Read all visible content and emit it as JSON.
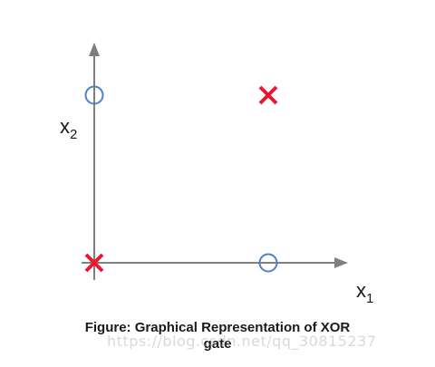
{
  "chart_data": {
    "type": "scatter",
    "title": "",
    "xlabel": {
      "base": "x",
      "sub": "1"
    },
    "ylabel": {
      "base": "x",
      "sub": "2"
    },
    "xlim": [
      0,
      1
    ],
    "ylim": [
      0,
      1
    ],
    "grid": false,
    "legend": "none",
    "series": [
      {
        "marker": "circle",
        "color": "#4f81bd",
        "points": [
          {
            "x": 0,
            "y": 1
          },
          {
            "x": 1,
            "y": 0
          }
        ]
      },
      {
        "marker": "cross",
        "color": "#e8192c",
        "points": [
          {
            "x": 0,
            "y": 0
          },
          {
            "x": 1,
            "y": 1
          }
        ]
      }
    ]
  },
  "caption": {
    "line1": "Figure: Graphical Representation of XOR",
    "line2": "gate"
  },
  "watermark": "https://blog.csdn.net/qq_30815237",
  "colors": {
    "axis": "#7f7f7f",
    "circle": "#4f81bd",
    "cross": "#e8192c"
  }
}
